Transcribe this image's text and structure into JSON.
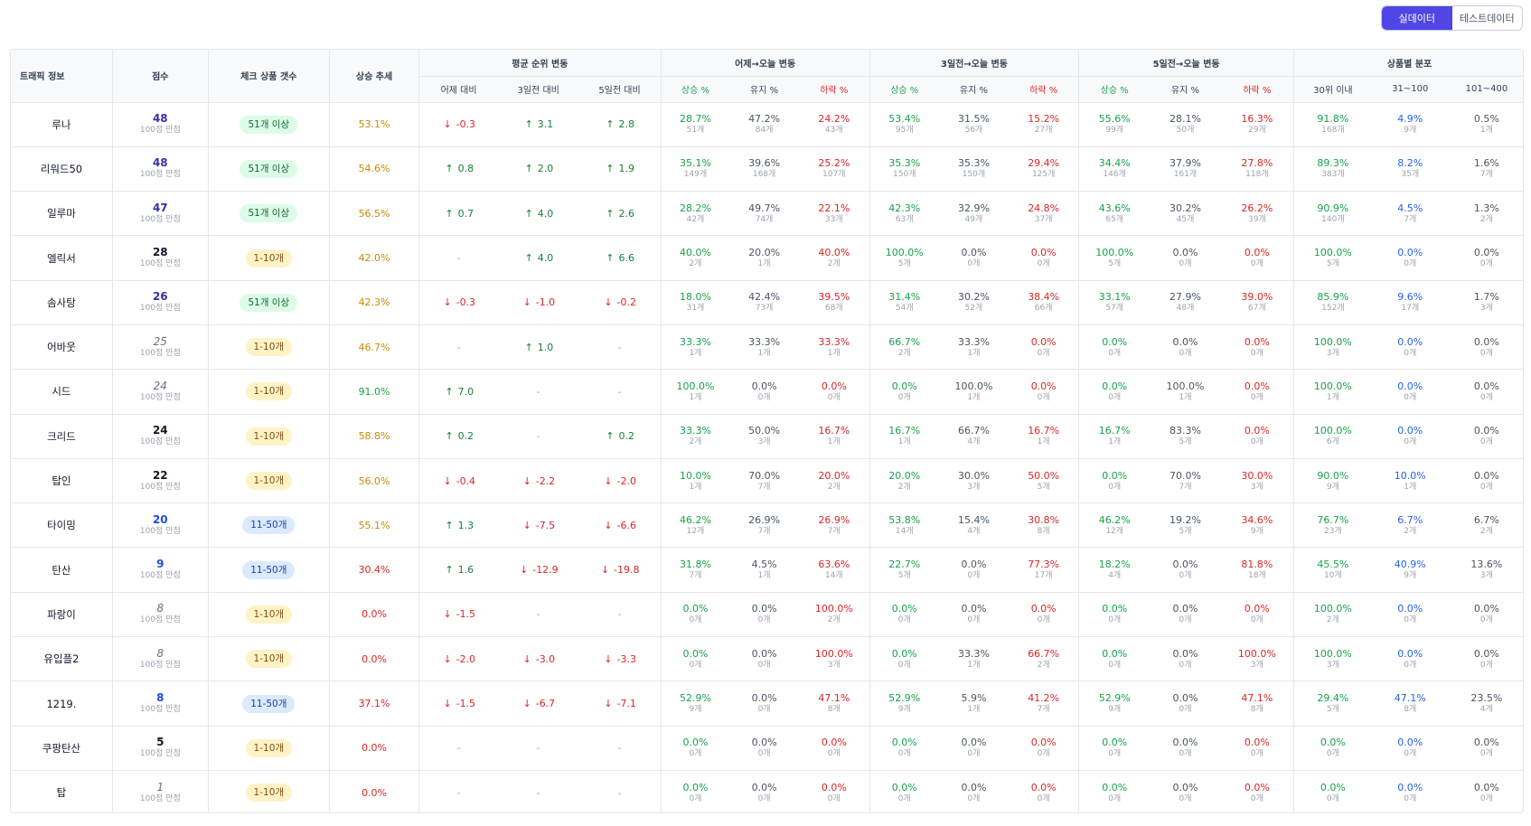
{
  "toggle": {
    "real": "실데이터",
    "test": "테스트데이터"
  },
  "colors": {
    "accent": "#4f46e5",
    "up": "#16a34a",
    "down": "#dc2626",
    "blue": "#2563eb"
  },
  "headers": {
    "traffic": "트래픽 정보",
    "score": "점수",
    "check_count": "체크 상품 갯수",
    "trend": "상승 추세",
    "avg_rank": "평균 순위 변동",
    "avg_sub": [
      "어제 대비",
      "3일전 대비",
      "5일전 대비"
    ],
    "g1": "어제→오늘 변동",
    "g3": "3일전→오늘 변동",
    "g5": "5일전→오늘 변동",
    "chg_sub": [
      "상승 %",
      "유지 %",
      "하락 %"
    ],
    "dist": "상품별 분포",
    "dist_sub": [
      "30위 이내",
      "31~100",
      "101~400"
    ]
  },
  "score_suffix": "100점 만점",
  "rows": [
    {
      "name": "루나",
      "score": "48",
      "sc": "#3730a3",
      "it": false,
      "check": "51개 이상",
      "ck": "green",
      "trend": "53.1%",
      "tc": "#ca8a04",
      "avg": [
        [
          "down",
          "-0.3"
        ],
        [
          "up",
          "3.1"
        ],
        [
          "up",
          "2.8"
        ]
      ],
      "d1": [
        [
          "28.7%",
          "51개"
        ],
        [
          "47.2%",
          "84개"
        ],
        [
          "24.2%",
          "43개"
        ]
      ],
      "d3": [
        [
          "53.4%",
          "95개"
        ],
        [
          "31.5%",
          "56개"
        ],
        [
          "15.2%",
          "27개"
        ]
      ],
      "d5": [
        [
          "55.6%",
          "99개"
        ],
        [
          "28.1%",
          "50개"
        ],
        [
          "16.3%",
          "29개"
        ]
      ],
      "dist": [
        [
          "91.8%",
          "168개"
        ],
        [
          "4.9%",
          "9개"
        ],
        [
          "0.5%",
          "1개"
        ]
      ]
    },
    {
      "name": "리워드50",
      "score": "48",
      "sc": "#3730a3",
      "it": false,
      "check": "51개 이상",
      "ck": "green",
      "trend": "54.6%",
      "tc": "#ca8a04",
      "avg": [
        [
          "up",
          "0.8"
        ],
        [
          "up",
          "2.0"
        ],
        [
          "up",
          "1.9"
        ]
      ],
      "d1": [
        [
          "35.1%",
          "149개"
        ],
        [
          "39.6%",
          "168개"
        ],
        [
          "25.2%",
          "107개"
        ]
      ],
      "d3": [
        [
          "35.3%",
          "150개"
        ],
        [
          "35.3%",
          "150개"
        ],
        [
          "29.4%",
          "125개"
        ]
      ],
      "d5": [
        [
          "34.4%",
          "146개"
        ],
        [
          "37.9%",
          "161개"
        ],
        [
          "27.8%",
          "118개"
        ]
      ],
      "dist": [
        [
          "89.3%",
          "383개"
        ],
        [
          "8.2%",
          "35개"
        ],
        [
          "1.6%",
          "7개"
        ]
      ]
    },
    {
      "name": "일루마",
      "score": "47",
      "sc": "#3730a3",
      "it": false,
      "check": "51개 이상",
      "ck": "green",
      "trend": "56.5%",
      "tc": "#ca8a04",
      "avg": [
        [
          "up",
          "0.7"
        ],
        [
          "up",
          "4.0"
        ],
        [
          "up",
          "2.6"
        ]
      ],
      "d1": [
        [
          "28.2%",
          "42개"
        ],
        [
          "49.7%",
          "74개"
        ],
        [
          "22.1%",
          "33개"
        ]
      ],
      "d3": [
        [
          "42.3%",
          "63개"
        ],
        [
          "32.9%",
          "49개"
        ],
        [
          "24.8%",
          "37개"
        ]
      ],
      "d5": [
        [
          "43.6%",
          "65개"
        ],
        [
          "30.2%",
          "45개"
        ],
        [
          "26.2%",
          "39개"
        ]
      ],
      "dist": [
        [
          "90.9%",
          "140개"
        ],
        [
          "4.5%",
          "7개"
        ],
        [
          "1.3%",
          "2개"
        ]
      ]
    },
    {
      "name": "엘릭서",
      "score": "28",
      "sc": "#111827",
      "it": false,
      "check": "1-10개",
      "ck": "yellow",
      "trend": "42.0%",
      "tc": "#ca8a04",
      "avg": [
        [
          "none",
          "-"
        ],
        [
          "up",
          "4.0"
        ],
        [
          "up",
          "6.6"
        ]
      ],
      "d1": [
        [
          "40.0%",
          "2개"
        ],
        [
          "20.0%",
          "1개"
        ],
        [
          "40.0%",
          "2개"
        ]
      ],
      "d3": [
        [
          "100.0%",
          "5개"
        ],
        [
          "0.0%",
          "0개"
        ],
        [
          "0.0%",
          "0개"
        ]
      ],
      "d5": [
        [
          "100.0%",
          "5개"
        ],
        [
          "0.0%",
          "0개"
        ],
        [
          "0.0%",
          "0개"
        ]
      ],
      "dist": [
        [
          "100.0%",
          "5개"
        ],
        [
          "0.0%",
          "0개"
        ],
        [
          "0.0%",
          "0개"
        ]
      ]
    },
    {
      "name": "솜사탕",
      "score": "26",
      "sc": "#3730a3",
      "it": false,
      "check": "51개 이상",
      "ck": "green",
      "trend": "42.3%",
      "tc": "#ca8a04",
      "avg": [
        [
          "down",
          "-0.3"
        ],
        [
          "down",
          "-1.0"
        ],
        [
          "down",
          "-0.2"
        ]
      ],
      "d1": [
        [
          "18.0%",
          "31개"
        ],
        [
          "42.4%",
          "73개"
        ],
        [
          "39.5%",
          "68개"
        ]
      ],
      "d3": [
        [
          "31.4%",
          "54개"
        ],
        [
          "30.2%",
          "52개"
        ],
        [
          "38.4%",
          "66개"
        ]
      ],
      "d5": [
        [
          "33.1%",
          "57개"
        ],
        [
          "27.9%",
          "48개"
        ],
        [
          "39.0%",
          "67개"
        ]
      ],
      "dist": [
        [
          "85.9%",
          "152개"
        ],
        [
          "9.6%",
          "17개"
        ],
        [
          "1.7%",
          "3개"
        ]
      ]
    },
    {
      "name": "어바웃",
      "score": "25",
      "sc": "#6b7280",
      "it": true,
      "check": "1-10개",
      "ck": "yellow",
      "trend": "46.7%",
      "tc": "#ca8a04",
      "avg": [
        [
          "none",
          "-"
        ],
        [
          "up",
          "1.0"
        ],
        [
          "none",
          "-"
        ]
      ],
      "d1": [
        [
          "33.3%",
          "1개"
        ],
        [
          "33.3%",
          "1개"
        ],
        [
          "33.3%",
          "1개"
        ]
      ],
      "d3": [
        [
          "66.7%",
          "2개"
        ],
        [
          "33.3%",
          "1개"
        ],
        [
          "0.0%",
          "0개"
        ]
      ],
      "d5": [
        [
          "0.0%",
          "0개"
        ],
        [
          "0.0%",
          "0개"
        ],
        [
          "0.0%",
          "0개"
        ]
      ],
      "dist": [
        [
          "100.0%",
          "3개"
        ],
        [
          "0.0%",
          "0개"
        ],
        [
          "0.0%",
          "0개"
        ]
      ]
    },
    {
      "name": "시드",
      "score": "24",
      "sc": "#6b7280",
      "it": true,
      "check": "1-10개",
      "ck": "yellow",
      "trend": "91.0%",
      "tc": "#16a34a",
      "avg": [
        [
          "up",
          "7.0"
        ],
        [
          "none",
          "-"
        ],
        [
          "none",
          "-"
        ]
      ],
      "d1": [
        [
          "100.0%",
          "1개"
        ],
        [
          "0.0%",
          "0개"
        ],
        [
          "0.0%",
          "0개"
        ]
      ],
      "d3": [
        [
          "0.0%",
          "0개"
        ],
        [
          "100.0%",
          "1개"
        ],
        [
          "0.0%",
          "0개"
        ]
      ],
      "d5": [
        [
          "0.0%",
          "0개"
        ],
        [
          "100.0%",
          "1개"
        ],
        [
          "0.0%",
          "0개"
        ]
      ],
      "dist": [
        [
          "100.0%",
          "1개"
        ],
        [
          "0.0%",
          "0개"
        ],
        [
          "0.0%",
          "0개"
        ]
      ]
    },
    {
      "name": "크리드",
      "score": "24",
      "sc": "#111827",
      "it": false,
      "check": "1-10개",
      "ck": "yellow",
      "trend": "58.8%",
      "tc": "#ca8a04",
      "avg": [
        [
          "up",
          "0.2"
        ],
        [
          "none",
          "-"
        ],
        [
          "up",
          "0.2"
        ]
      ],
      "d1": [
        [
          "33.3%",
          "2개"
        ],
        [
          "50.0%",
          "3개"
        ],
        [
          "16.7%",
          "1개"
        ]
      ],
      "d3": [
        [
          "16.7%",
          "1개"
        ],
        [
          "66.7%",
          "4개"
        ],
        [
          "16.7%",
          "1개"
        ]
      ],
      "d5": [
        [
          "16.7%",
          "1개"
        ],
        [
          "83.3%",
          "5개"
        ],
        [
          "0.0%",
          "0개"
        ]
      ],
      "dist": [
        [
          "100.0%",
          "6개"
        ],
        [
          "0.0%",
          "0개"
        ],
        [
          "0.0%",
          "0개"
        ]
      ]
    },
    {
      "name": "탑인",
      "score": "22",
      "sc": "#111827",
      "it": false,
      "check": "1-10개",
      "ck": "yellow",
      "trend": "56.0%",
      "tc": "#ca8a04",
      "avg": [
        [
          "down",
          "-0.4"
        ],
        [
          "down",
          "-2.2"
        ],
        [
          "down",
          "-2.0"
        ]
      ],
      "d1": [
        [
          "10.0%",
          "1개"
        ],
        [
          "70.0%",
          "7개"
        ],
        [
          "20.0%",
          "2개"
        ]
      ],
      "d3": [
        [
          "20.0%",
          "2개"
        ],
        [
          "30.0%",
          "3개"
        ],
        [
          "50.0%",
          "5개"
        ]
      ],
      "d5": [
        [
          "0.0%",
          "0개"
        ],
        [
          "70.0%",
          "7개"
        ],
        [
          "30.0%",
          "3개"
        ]
      ],
      "dist": [
        [
          "90.0%",
          "9개"
        ],
        [
          "10.0%",
          "1개"
        ],
        [
          "0.0%",
          "0개"
        ]
      ]
    },
    {
      "name": "타이밍",
      "score": "20",
      "sc": "#1d4ed8",
      "it": false,
      "check": "11-50개",
      "ck": "blue",
      "trend": "55.1%",
      "tc": "#ca8a04",
      "avg": [
        [
          "up",
          "1.3"
        ],
        [
          "down",
          "-7.5"
        ],
        [
          "down",
          "-6.6"
        ]
      ],
      "d1": [
        [
          "46.2%",
          "12개"
        ],
        [
          "26.9%",
          "7개"
        ],
        [
          "26.9%",
          "7개"
        ]
      ],
      "d3": [
        [
          "53.8%",
          "14개"
        ],
        [
          "15.4%",
          "4개"
        ],
        [
          "30.8%",
          "8개"
        ]
      ],
      "d5": [
        [
          "46.2%",
          "12개"
        ],
        [
          "19.2%",
          "5개"
        ],
        [
          "34.6%",
          "9개"
        ]
      ],
      "dist": [
        [
          "76.7%",
          "23개"
        ],
        [
          "6.7%",
          "2개"
        ],
        [
          "6.7%",
          "2개"
        ]
      ]
    },
    {
      "name": "탄산",
      "score": "9",
      "sc": "#1d4ed8",
      "it": false,
      "check": "11-50개",
      "ck": "blue",
      "trend": "30.4%",
      "tc": "#dc2626",
      "avg": [
        [
          "up",
          "1.6"
        ],
        [
          "down",
          "-12.9"
        ],
        [
          "down",
          "-19.8"
        ]
      ],
      "d1": [
        [
          "31.8%",
          "7개"
        ],
        [
          "4.5%",
          "1개"
        ],
        [
          "63.6%",
          "14개"
        ]
      ],
      "d3": [
        [
          "22.7%",
          "5개"
        ],
        [
          "0.0%",
          "0개"
        ],
        [
          "77.3%",
          "17개"
        ]
      ],
      "d5": [
        [
          "18.2%",
          "4개"
        ],
        [
          "0.0%",
          "0개"
        ],
        [
          "81.8%",
          "18개"
        ]
      ],
      "dist": [
        [
          "45.5%",
          "10개"
        ],
        [
          "40.9%",
          "9개"
        ],
        [
          "13.6%",
          "3개"
        ]
      ]
    },
    {
      "name": "파랑이",
      "score": "8",
      "sc": "#6b7280",
      "it": true,
      "check": "1-10개",
      "ck": "yellow",
      "trend": "0.0%",
      "tc": "#dc2626",
      "avg": [
        [
          "down",
          "-1.5"
        ],
        [
          "none",
          "-"
        ],
        [
          "none",
          "-"
        ]
      ],
      "d1": [
        [
          "0.0%",
          "0개"
        ],
        [
          "0.0%",
          "0개"
        ],
        [
          "100.0%",
          "2개"
        ]
      ],
      "d3": [
        [
          "0.0%",
          "0개"
        ],
        [
          "0.0%",
          "0개"
        ],
        [
          "0.0%",
          "0개"
        ]
      ],
      "d5": [
        [
          "0.0%",
          "0개"
        ],
        [
          "0.0%",
          "0개"
        ],
        [
          "0.0%",
          "0개"
        ]
      ],
      "dist": [
        [
          "100.0%",
          "2개"
        ],
        [
          "0.0%",
          "0개"
        ],
        [
          "0.0%",
          "0개"
        ]
      ]
    },
    {
      "name": "유입플2",
      "score": "8",
      "sc": "#6b7280",
      "it": true,
      "check": "1-10개",
      "ck": "yellow",
      "trend": "0.0%",
      "tc": "#dc2626",
      "avg": [
        [
          "down",
          "-2.0"
        ],
        [
          "down",
          "-3.0"
        ],
        [
          "down",
          "-3.3"
        ]
      ],
      "d1": [
        [
          "0.0%",
          "0개"
        ],
        [
          "0.0%",
          "0개"
        ],
        [
          "100.0%",
          "3개"
        ]
      ],
      "d3": [
        [
          "0.0%",
          "0개"
        ],
        [
          "33.3%",
          "1개"
        ],
        [
          "66.7%",
          "2개"
        ]
      ],
      "d5": [
        [
          "0.0%",
          "0개"
        ],
        [
          "0.0%",
          "0개"
        ],
        [
          "100.0%",
          "3개"
        ]
      ],
      "dist": [
        [
          "100.0%",
          "3개"
        ],
        [
          "0.0%",
          "0개"
        ],
        [
          "0.0%",
          "0개"
        ]
      ]
    },
    {
      "name": "1219.",
      "score": "8",
      "sc": "#1d4ed8",
      "it": false,
      "check": "11-50개",
      "ck": "blue",
      "trend": "37.1%",
      "tc": "#dc2626",
      "avg": [
        [
          "down",
          "-1.5"
        ],
        [
          "down",
          "-6.7"
        ],
        [
          "down",
          "-7.1"
        ]
      ],
      "d1": [
        [
          "52.9%",
          "9개"
        ],
        [
          "0.0%",
          "0개"
        ],
        [
          "47.1%",
          "8개"
        ]
      ],
      "d3": [
        [
          "52.9%",
          "9개"
        ],
        [
          "5.9%",
          "1개"
        ],
        [
          "41.2%",
          "7개"
        ]
      ],
      "d5": [
        [
          "52.9%",
          "9개"
        ],
        [
          "0.0%",
          "0개"
        ],
        [
          "47.1%",
          "8개"
        ]
      ],
      "dist": [
        [
          "29.4%",
          "5개"
        ],
        [
          "47.1%",
          "8개"
        ],
        [
          "23.5%",
          "4개"
        ]
      ]
    },
    {
      "name": "쿠팡탄산",
      "score": "5",
      "sc": "#111827",
      "it": false,
      "check": "1-10개",
      "ck": "yellow",
      "trend": "0.0%",
      "tc": "#dc2626",
      "avg": [
        [
          "none",
          "-"
        ],
        [
          "none",
          "-"
        ],
        [
          "none",
          "-"
        ]
      ],
      "d1": [
        [
          "0.0%",
          "0개"
        ],
        [
          "0.0%",
          "0개"
        ],
        [
          "0.0%",
          "0개"
        ]
      ],
      "d3": [
        [
          "0.0%",
          "0개"
        ],
        [
          "0.0%",
          "0개"
        ],
        [
          "0.0%",
          "0개"
        ]
      ],
      "d5": [
        [
          "0.0%",
          "0개"
        ],
        [
          "0.0%",
          "0개"
        ],
        [
          "0.0%",
          "0개"
        ]
      ],
      "dist": [
        [
          "0.0%",
          "0개"
        ],
        [
          "0.0%",
          "0개"
        ],
        [
          "0.0%",
          "0개"
        ]
      ]
    },
    {
      "name": "탑",
      "score": "1",
      "sc": "#6b7280",
      "it": true,
      "check": "1-10개",
      "ck": "yellow",
      "trend": "0.0%",
      "tc": "#dc2626",
      "avg": [
        [
          "none",
          "-"
        ],
        [
          "none",
          "-"
        ],
        [
          "none",
          "-"
        ]
      ],
      "d1": [
        [
          "0.0%",
          "0개"
        ],
        [
          "0.0%",
          "0개"
        ],
        [
          "0.0%",
          "0개"
        ]
      ],
      "d3": [
        [
          "0.0%",
          "0개"
        ],
        [
          "0.0%",
          "0개"
        ],
        [
          "0.0%",
          "0개"
        ]
      ],
      "d5": [
        [
          "0.0%",
          "0개"
        ],
        [
          "0.0%",
          "0개"
        ],
        [
          "0.0%",
          "0개"
        ]
      ],
      "dist": [
        [
          "0.0%",
          "0개"
        ],
        [
          "0.0%",
          "0개"
        ],
        [
          "0.0%",
          "0개"
        ]
      ]
    }
  ]
}
